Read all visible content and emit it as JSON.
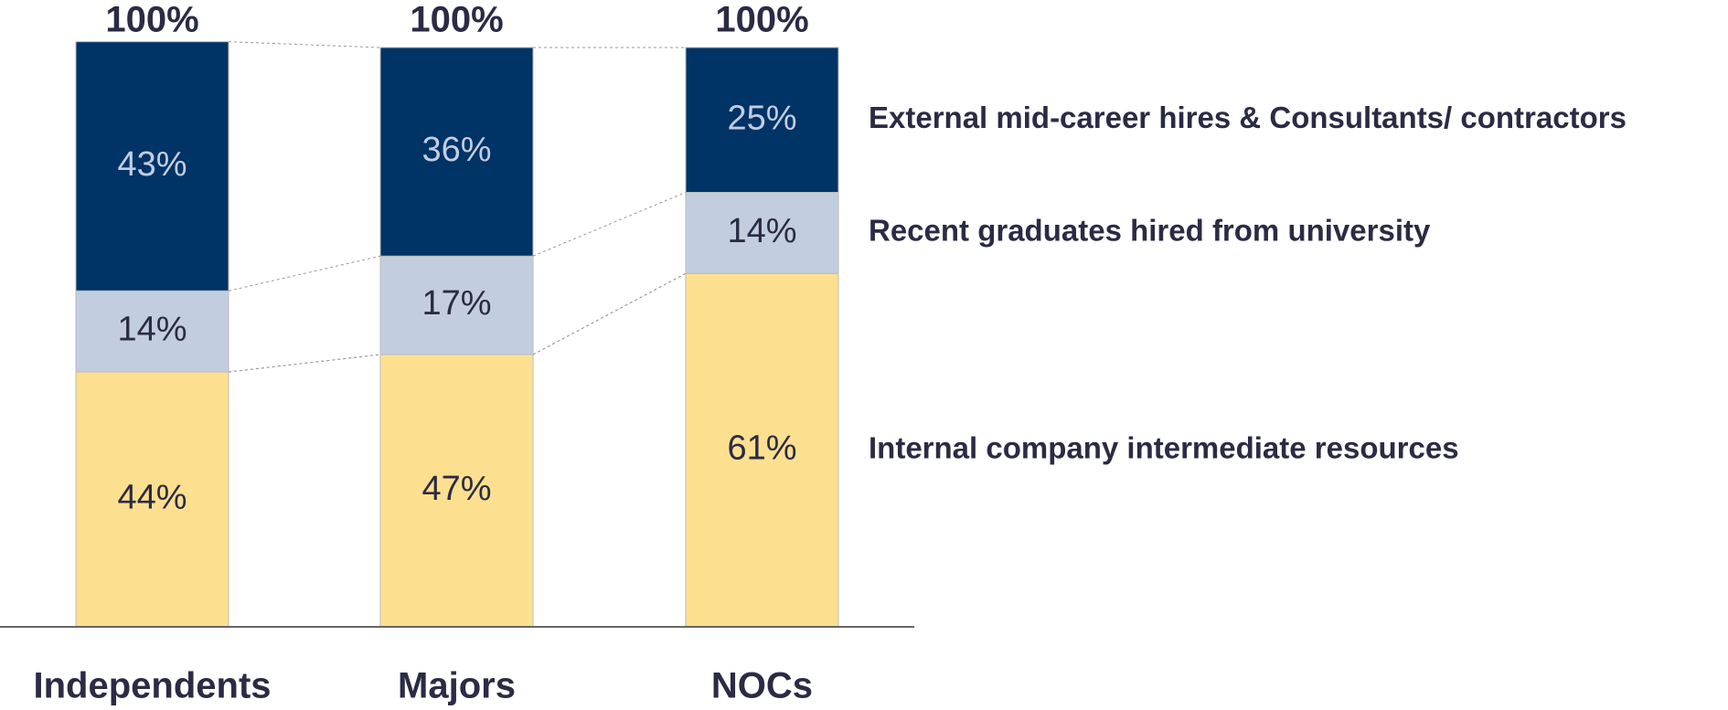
{
  "chart_data": {
    "type": "stacked_bar",
    "categories": [
      "Independents",
      "Majors",
      "NOCs"
    ],
    "series": [
      {
        "name": "Internal company intermediate resources",
        "color": "#fde08f",
        "values": [
          44,
          47,
          61
        ],
        "value_labels": [
          "44%",
          "47%",
          "61%"
        ]
      },
      {
        "name": "Recent graduates hired from university",
        "color": "#c3cde0",
        "values": [
          14,
          17,
          14
        ],
        "value_labels": [
          "14%",
          "17%",
          "14%"
        ]
      },
      {
        "name": "External mid-career hires & Consultants/ contractors",
        "color": "#003366",
        "values": [
          43,
          36,
          25
        ],
        "value_labels": [
          "43%",
          "36%",
          "25%"
        ]
      }
    ],
    "totals": {
      "values": [
        100,
        100,
        100
      ],
      "value_labels": [
        "100%",
        "100%",
        "100%"
      ]
    }
  }
}
